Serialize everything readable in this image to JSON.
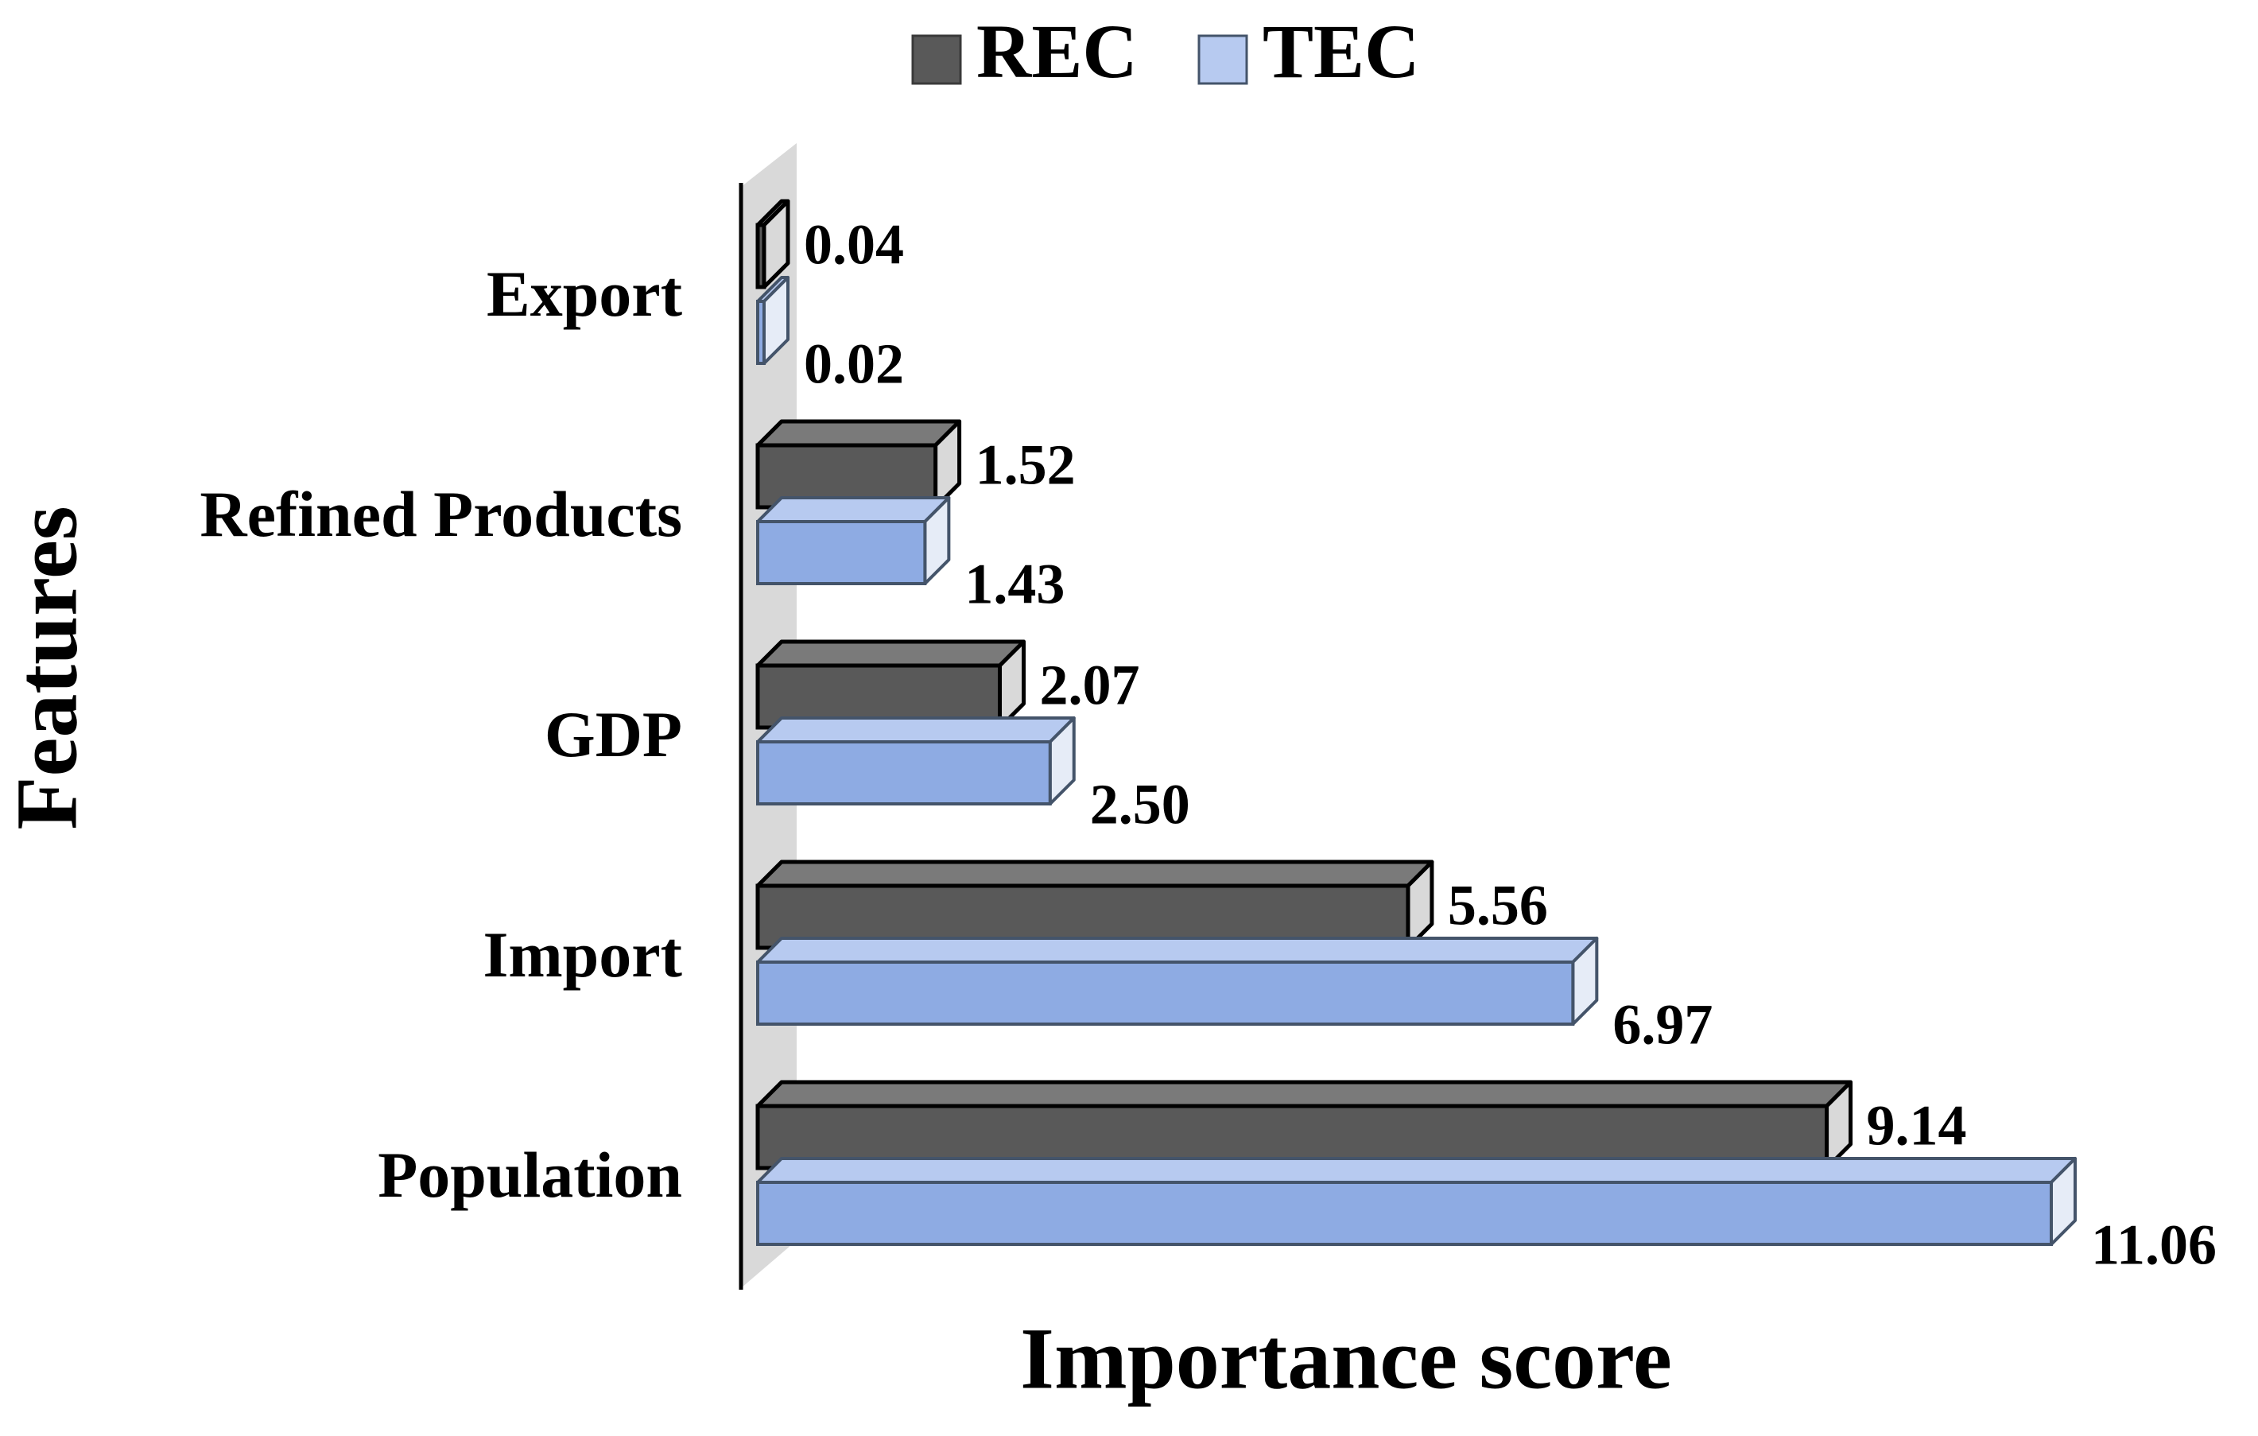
{
  "colors": {
    "rec_front": "#595959",
    "rec_top": "#7a7a7a",
    "rec_side": "#d9d9d9",
    "rec_stroke": "#000000",
    "tec_front": "#8eabe3",
    "tec_top": "#b7caf0",
    "tec_side": "#e6ecf7",
    "tec_stroke": "#44546a",
    "wall": "#d9d9d9",
    "axis": "#000000",
    "background": "#ffffff"
  },
  "chart_data": {
    "type": "bar",
    "orientation": "horizontal",
    "style": "3d-clustered",
    "title": "",
    "xlabel": "Importance score",
    "ylabel": "Features",
    "xlim": [
      0,
      11.06
    ],
    "categories": [
      "Export",
      "Refined Products",
      "GDP",
      "Import",
      "Population"
    ],
    "series": [
      {
        "name": "REC",
        "values": [
          0.04,
          1.52,
          2.07,
          5.56,
          9.14
        ],
        "labels": [
          "0.04",
          "1.52",
          "2.07",
          "5.56",
          "9.14"
        ]
      },
      {
        "name": "TEC",
        "values": [
          0.02,
          1.43,
          2.5,
          6.97,
          11.06
        ],
        "labels": [
          "0.02",
          "1.43",
          "2.50",
          "6.97",
          "11.06"
        ]
      }
    ],
    "legend": {
      "position": "top-center",
      "entries": [
        "REC",
        "TEC"
      ]
    },
    "grid": false
  }
}
